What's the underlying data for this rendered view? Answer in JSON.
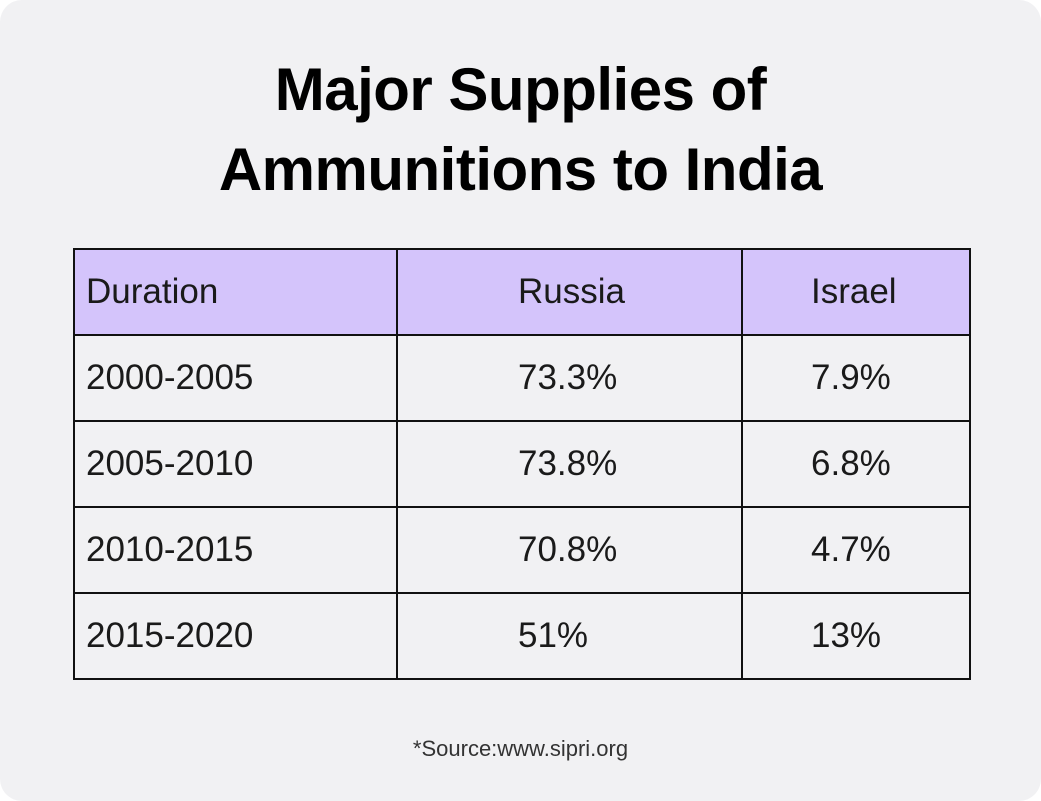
{
  "title_lines": [
    "Major Supplies of",
    "Ammunitions to India"
  ],
  "chart_data": {
    "type": "table",
    "title": "Major Supplies of Ammunitions to India",
    "columns": [
      "Duration",
      "Russia",
      "Israel"
    ],
    "rows": [
      [
        "2000-2005",
        "73.3%",
        "7.9%"
      ],
      [
        "2005-2010",
        "73.8%",
        "6.8%"
      ],
      [
        "2010-2015",
        "70.8%",
        "4.7%"
      ],
      [
        "2015-2020",
        "51%",
        "13%"
      ]
    ],
    "series": [
      {
        "name": "Russia",
        "values": [
          73.3,
          73.8,
          70.8,
          51
        ]
      },
      {
        "name": "Israel",
        "values": [
          7.9,
          6.8,
          4.7,
          13
        ]
      }
    ],
    "categories": [
      "2000-2005",
      "2005-2010",
      "2010-2015",
      "2015-2020"
    ]
  },
  "source": "*Source:www.sipri.org",
  "colors": {
    "background": "#f1f1f3",
    "header_fill": "#d4c4fb",
    "border": "#111111",
    "title_text": "#000000"
  }
}
